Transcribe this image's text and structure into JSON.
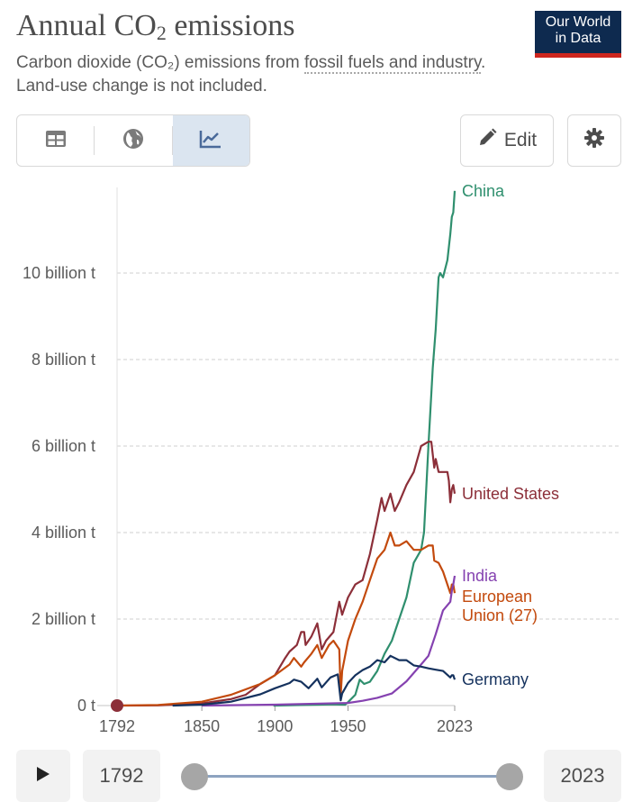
{
  "header": {
    "title_main": "Annual CO",
    "title_sub": "2",
    "title_end": " emissions",
    "subtitle_a": "Carbon dioxide (CO",
    "subtitle_sub": "₂",
    "subtitle_b": ") emissions from ",
    "subtitle_link": "fossil fuels and industry",
    "subtitle_c": ". Land-use change is not included.",
    "logo_line1": "Our World",
    "logo_line2": "in Data"
  },
  "toolbar": {
    "tabs": [
      {
        "name": "table",
        "icon": "table-icon"
      },
      {
        "name": "map",
        "icon": "globe-icon"
      },
      {
        "name": "chart",
        "icon": "line-chart-icon",
        "active": true
      }
    ],
    "edit_label": "Edit",
    "edit_icon": "pencil-icon",
    "settings_icon": "gear-icon"
  },
  "chart_data": {
    "type": "line",
    "title": "Annual CO2 emissions",
    "xlabel": "",
    "ylabel": "",
    "xlim": [
      1792,
      2023
    ],
    "ylim": [
      0,
      12000000000
    ],
    "x_ticks": [
      1792,
      1850,
      1900,
      1950,
      2023
    ],
    "y_ticks": [
      {
        "value": 0,
        "label": "0 t"
      },
      {
        "value": 2000000000,
        "label": "2 billion t"
      },
      {
        "value": 4000000000,
        "label": "4 billion t"
      },
      {
        "value": 6000000000,
        "label": "6 billion t"
      },
      {
        "value": 8000000000,
        "label": "8 billion t"
      },
      {
        "value": 10000000000,
        "label": "10 billion t"
      }
    ],
    "grid": "horizontal dashed",
    "start_marker": {
      "year": 1792,
      "value": 0,
      "color": "#8c2f39"
    },
    "series": [
      {
        "name": "China",
        "label": [
          "China"
        ],
        "color": "#2f8f6e",
        "x": [
          1899,
          1940,
          1948,
          1950,
          1955,
          1958,
          1961,
          1965,
          1970,
          1975,
          1980,
          1985,
          1990,
          1995,
          2000,
          2002,
          2005,
          2008,
          2010,
          2012,
          2013,
          2015,
          2018,
          2020,
          2021,
          2022,
          2023
        ],
        "y": [
          0,
          30000000,
          20000000,
          80000000,
          250000000,
          600000000,
          500000000,
          550000000,
          800000000,
          1200000000,
          1500000000,
          2000000000,
          2500000000,
          3300000000,
          3600000000,
          4000000000,
          6000000000,
          7800000000,
          8700000000,
          9900000000,
          10000000000,
          9900000000,
          10300000000,
          10900000000,
          11300000000,
          11400000000,
          11900000000
        ]
      },
      {
        "name": "United States",
        "label": [
          "United States"
        ],
        "color": "#8c2f39",
        "x": [
          1792,
          1820,
          1850,
          1870,
          1880,
          1890,
          1900,
          1907,
          1910,
          1915,
          1918,
          1920,
          1921,
          1925,
          1929,
          1932,
          1935,
          1940,
          1944,
          1946,
          1950,
          1955,
          1960,
          1965,
          1970,
          1973,
          1975,
          1979,
          1982,
          1985,
          1990,
          1995,
          2000,
          2005,
          2007,
          2009,
          2010,
          2012,
          2015,
          2018,
          2019,
          2020,
          2021,
          2022,
          2023
        ],
        "y": [
          0,
          5000000,
          50000000,
          150000000,
          250000000,
          500000000,
          700000000,
          1100000000,
          1250000000,
          1400000000,
          1700000000,
          1700000000,
          1400000000,
          1600000000,
          1900000000,
          1300000000,
          1500000000,
          1700000000,
          2400000000,
          2100000000,
          2500000000,
          2800000000,
          2900000000,
          3500000000,
          4300000000,
          4800000000,
          4500000000,
          4900000000,
          4500000000,
          4700000000,
          5100000000,
          5400000000,
          6000000000,
          6100000000,
          6100000000,
          5500000000,
          5700000000,
          5400000000,
          5400000000,
          5400000000,
          5200000000,
          4700000000,
          5000000000,
          5100000000,
          4900000000
        ]
      },
      {
        "name": "European Union (27)",
        "label": [
          "European",
          "Union (27)"
        ],
        "color": "#c34a0d",
        "x": [
          1792,
          1820,
          1850,
          1870,
          1890,
          1900,
          1910,
          1913,
          1918,
          1920,
          1925,
          1929,
          1932,
          1937,
          1940,
          1944,
          1945,
          1946,
          1950,
          1955,
          1960,
          1965,
          1970,
          1975,
          1979,
          1982,
          1985,
          1990,
          1995,
          2000,
          2005,
          2008,
          2009,
          2012,
          2015,
          2020,
          2021,
          2022,
          2023
        ],
        "y": [
          0,
          15000000,
          90000000,
          250000000,
          500000000,
          700000000,
          950000000,
          1100000000,
          900000000,
          1000000000,
          1200000000,
          1400000000,
          1100000000,
          1400000000,
          1500000000,
          1300000000,
          250000000,
          800000000,
          1500000000,
          2000000000,
          2400000000,
          2900000000,
          3400000000,
          3600000000,
          4000000000,
          3700000000,
          3700000000,
          3800000000,
          3600000000,
          3600000000,
          3700000000,
          3700000000,
          3350000000,
          3300000000,
          3100000000,
          2600000000,
          2800000000,
          2800000000,
          2600000000
        ]
      },
      {
        "name": "India",
        "label": [
          "India"
        ],
        "color": "#8542b0",
        "x": [
          1850,
          1900,
          1950,
          1960,
          1970,
          1980,
          1990,
          2000,
          2005,
          2010,
          2015,
          2020,
          2021,
          2022,
          2023
        ],
        "y": [
          0,
          20000000,
          60000000,
          110000000,
          180000000,
          280000000,
          560000000,
          950000000,
          1150000000,
          1650000000,
          2200000000,
          2400000000,
          2650000000,
          2800000000,
          3000000000
        ]
      },
      {
        "name": "Germany",
        "label": [
          "Germany"
        ],
        "color": "#15325e",
        "x": [
          1830,
          1850,
          1870,
          1890,
          1900,
          1910,
          1913,
          1918,
          1923,
          1929,
          1932,
          1938,
          1943,
          1945,
          1946,
          1950,
          1955,
          1960,
          1965,
          1970,
          1975,
          1979,
          1985,
          1990,
          1995,
          2000,
          2005,
          2010,
          2015,
          2020,
          2021,
          2022,
          2023
        ],
        "y": [
          0,
          20000000,
          90000000,
          260000000,
          400000000,
          520000000,
          600000000,
          550000000,
          400000000,
          620000000,
          420000000,
          650000000,
          720000000,
          120000000,
          280000000,
          520000000,
          700000000,
          820000000,
          900000000,
          1050000000,
          1000000000,
          1150000000,
          1050000000,
          1050000000,
          930000000,
          900000000,
          860000000,
          830000000,
          800000000,
          650000000,
          700000000,
          700000000,
          600000000
        ]
      }
    ]
  },
  "timeline": {
    "play_icon": "play-icon",
    "start_year": "1792",
    "end_year": "2023",
    "range_start": 1792,
    "range_end": 2023
  }
}
